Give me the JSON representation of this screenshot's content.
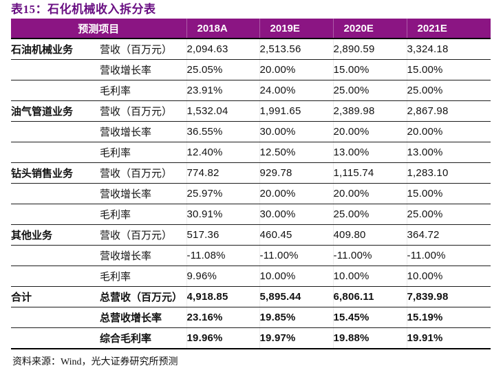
{
  "title": "表15：石化机械收入拆分表",
  "table": {
    "header": {
      "item": "预测项目",
      "years": [
        "2018A",
        "2019E",
        "2020E",
        "2021E"
      ]
    },
    "sections": [
      {
        "name": "石油机械业务",
        "bold": false,
        "rows": [
          {
            "label": "营收（百万元）",
            "values": [
              "2,094.63",
              "2,513.56",
              "2,890.59",
              "3,324.18"
            ]
          },
          {
            "label": "营收增长率",
            "values": [
              "25.05%",
              "20.00%",
              "15.00%",
              "15.00%"
            ]
          },
          {
            "label": "毛利率",
            "values": [
              "23.91%",
              "24.00%",
              "25.00%",
              "25.00%"
            ]
          }
        ]
      },
      {
        "name": "油气管道业务",
        "bold": false,
        "rows": [
          {
            "label": "营收（百万元）",
            "values": [
              "1,532.04",
              "1,991.65",
              "2,389.98",
              "2,867.98"
            ]
          },
          {
            "label": "营收增长率",
            "values": [
              "36.55%",
              "30.00%",
              "20.00%",
              "20.00%"
            ]
          },
          {
            "label": "毛利率",
            "values": [
              "12.40%",
              "12.50%",
              "13.00%",
              "13.00%"
            ]
          }
        ]
      },
      {
        "name": "钻头销售业务",
        "bold": false,
        "rows": [
          {
            "label": "营收（百万元）",
            "values": [
              "774.82",
              "929.78",
              "1,115.74",
              "1,283.10"
            ]
          },
          {
            "label": "营收增长率",
            "values": [
              "25.97%",
              "20.00%",
              "20.00%",
              "15.00%"
            ]
          },
          {
            "label": "毛利率",
            "values": [
              "30.91%",
              "30.00%",
              "25.00%",
              "25.00%"
            ]
          }
        ]
      },
      {
        "name": "其他业务",
        "bold": false,
        "rows": [
          {
            "label": "营收（百万元）",
            "values": [
              "517.36",
              "460.45",
              "409.80",
              "364.72"
            ]
          },
          {
            "label": "营收增长率",
            "values": [
              "-11.08%",
              "-11.00%",
              "-11.00%",
              "-11.00%"
            ]
          },
          {
            "label": "毛利率",
            "values": [
              "9.96%",
              "10.00%",
              "10.00%",
              "10.00%"
            ]
          }
        ]
      },
      {
        "name": "合计",
        "bold": true,
        "rows": [
          {
            "label": "总营收（百万元）",
            "values": [
              "4,918.85",
              "5,895.44",
              "6,806.11",
              "7,839.98"
            ]
          },
          {
            "label": "总营收增长率",
            "values": [
              "23.16%",
              "19.85%",
              "15.45%",
              "15.19%"
            ]
          },
          {
            "label": "综合毛利率",
            "values": [
              "19.96%",
              "19.97%",
              "19.88%",
              "19.91%"
            ]
          }
        ]
      }
    ]
  },
  "footer": {
    "text": "资料来源：Wind，光大证券研究所预测"
  },
  "colors": {
    "title": "#690F82",
    "header_band_bg": "#8B1583",
    "header_band_text": "#FFFFFF"
  }
}
